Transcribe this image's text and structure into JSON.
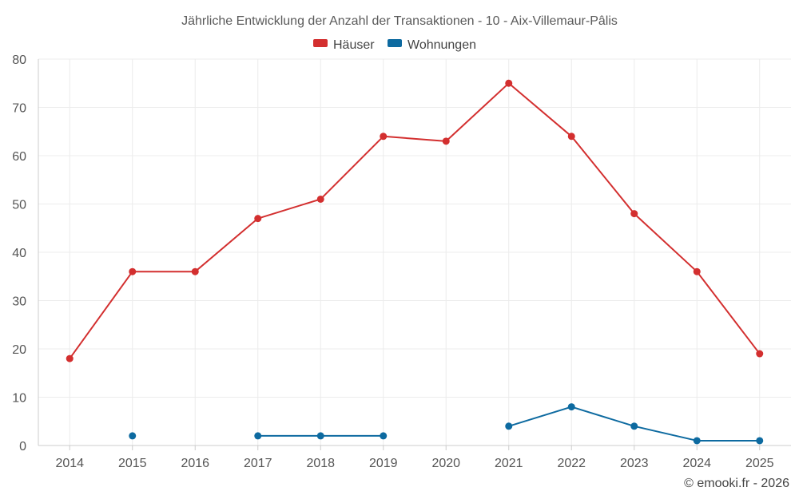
{
  "chart_data": {
    "type": "line",
    "title": "Jährliche Entwicklung der Anzahl der Transaktionen - 10 - Aix-Villemaur-Pâlis",
    "categories": [
      "2014",
      "2015",
      "2016",
      "2017",
      "2018",
      "2019",
      "2020",
      "2021",
      "2022",
      "2023",
      "2024",
      "2025"
    ],
    "ylim": [
      0,
      80
    ],
    "yticks": [
      0,
      10,
      20,
      30,
      40,
      50,
      60,
      70,
      80
    ],
    "grid": true,
    "legend_position": "top-center",
    "series": [
      {
        "name": "Häuser",
        "color": "#d32f2f",
        "values": [
          18,
          36,
          36,
          47,
          51,
          64,
          63,
          75,
          64,
          48,
          36,
          19
        ]
      },
      {
        "name": "Wohnungen",
        "color": "#0d6aa0",
        "values": [
          null,
          2,
          null,
          2,
          2,
          2,
          null,
          4,
          8,
          4,
          1,
          1
        ]
      }
    ],
    "credit": "© emooki.fr - 2026"
  }
}
